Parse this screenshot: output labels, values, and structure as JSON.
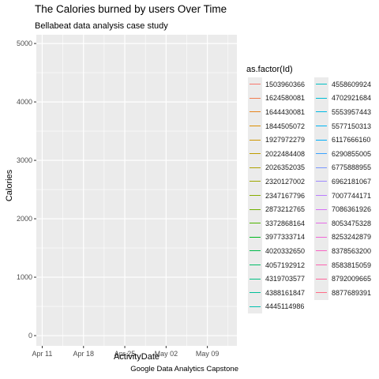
{
  "chart_data": {
    "type": "line",
    "title": "The Calories burned by users Over Time",
    "subtitle": "Bellabeat data analysis case study",
    "caption": "Google Data Analytics Capstone",
    "xlabel": "ActivityDate",
    "ylabel": "Calories",
    "y_ticks": [
      0,
      1000,
      2000,
      3000,
      4000,
      5000
    ],
    "ylim": [
      -175,
      5150
    ],
    "x_ticks": [
      "Apr 11",
      "Apr 18",
      "Apr 25",
      "May 02",
      "May 09"
    ],
    "xlim": [
      "2016-04-10",
      "2016-05-14"
    ],
    "grid": true,
    "legend_title": "as.factor(Id)",
    "legend_position": "right",
    "series": [
      {
        "name": "1503960366",
        "color": "#F8766D",
        "values": []
      },
      {
        "name": "1624580081",
        "color": "#F17D4F",
        "values": []
      },
      {
        "name": "1644430081",
        "color": "#E7851E",
        "values": []
      },
      {
        "name": "1844505072",
        "color": "#DB8E00",
        "values": []
      },
      {
        "name": "1927972279",
        "color": "#CE9700",
        "values": []
      },
      {
        "name": "2022484408",
        "color": "#BE9C00",
        "values": []
      },
      {
        "name": "2026352035",
        "color": "#AEA200",
        "values": []
      },
      {
        "name": "2320127002",
        "color": "#9DA700",
        "values": []
      },
      {
        "name": "2347167796",
        "color": "#88AC00",
        "values": []
      },
      {
        "name": "2873212765",
        "color": "#6FB000",
        "values": []
      },
      {
        "name": "3372868164",
        "color": "#4DB400",
        "values": []
      },
      {
        "name": "3977333714",
        "color": "#00B81F",
        "values": []
      },
      {
        "name": "4020332650",
        "color": "#00BA4A",
        "values": []
      },
      {
        "name": "4057192912",
        "color": "#00BC67",
        "values": []
      },
      {
        "name": "4319703577",
        "color": "#00BE82",
        "values": []
      },
      {
        "name": "4388161847",
        "color": "#00BF99",
        "values": []
      },
      {
        "name": "4445114986",
        "color": "#00C0AF",
        "values": []
      },
      {
        "name": "4558609924",
        "color": "#00BFC4",
        "values": []
      },
      {
        "name": "4702921684",
        "color": "#00BDD5",
        "values": []
      },
      {
        "name": "5553957443",
        "color": "#00BAE5",
        "values": []
      },
      {
        "name": "5577150313",
        "color": "#00B5F4",
        "values": []
      },
      {
        "name": "6117666160",
        "color": "#00AEFA",
        "values": []
      },
      {
        "name": "6290855005",
        "color": "#3AA3FF",
        "values": []
      },
      {
        "name": "6775888955",
        "color": "#7997FF",
        "values": []
      },
      {
        "name": "6962181067",
        "color": "#9F8AFF",
        "values": []
      },
      {
        "name": "7007744171",
        "color": "#BB7CFF",
        "values": []
      },
      {
        "name": "7086361926",
        "color": "#D670F6",
        "values": []
      },
      {
        "name": "8053475328",
        "color": "#E66BE8",
        "values": []
      },
      {
        "name": "8253242879",
        "color": "#F167D7",
        "values": []
      },
      {
        "name": "8378563200",
        "color": "#F964C5",
        "values": []
      },
      {
        "name": "8583815059",
        "color": "#FD63B1",
        "values": []
      },
      {
        "name": "8792009665",
        "color": "#FF669B",
        "values": []
      },
      {
        "name": "8877689391",
        "color": "#FF6C86",
        "values": []
      }
    ]
  }
}
